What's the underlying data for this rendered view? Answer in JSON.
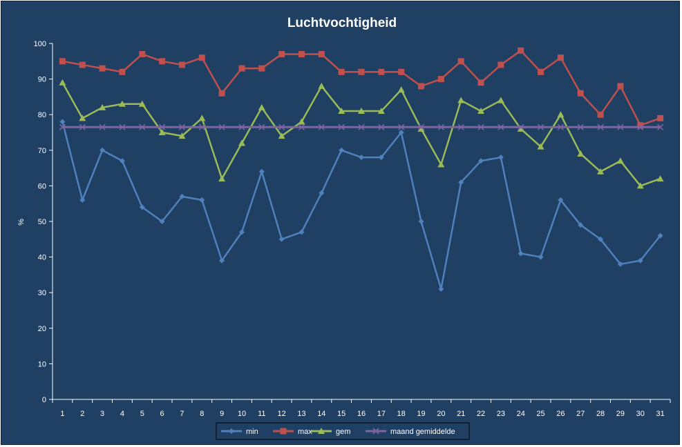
{
  "chart_data": {
    "type": "line",
    "title": "Luchtvochtigheid",
    "xlabel": "",
    "ylabel": "%",
    "ylim": [
      0,
      100
    ],
    "yticks": [
      0,
      10,
      20,
      30,
      40,
      50,
      60,
      70,
      80,
      90,
      100
    ],
    "grid": false,
    "legend_position": "bottom",
    "categories": [
      "1",
      "2",
      "3",
      "4",
      "5",
      "6",
      "7",
      "8",
      "9",
      "10",
      "11",
      "12",
      "13",
      "14",
      "15",
      "16",
      "17",
      "18",
      "19",
      "20",
      "21",
      "22",
      "23",
      "24",
      "25",
      "26",
      "27",
      "28",
      "29",
      "30",
      "31"
    ],
    "series": [
      {
        "name": "min",
        "color": "#4f81bd",
        "marker": "diamond",
        "values": [
          78,
          56,
          70,
          67,
          54,
          50,
          57,
          56,
          39,
          47,
          64,
          45,
          47,
          58,
          70,
          68,
          68,
          75,
          50,
          31,
          61,
          67,
          68,
          41,
          40,
          56,
          49,
          45,
          38,
          39,
          46
        ]
      },
      {
        "name": "max",
        "color": "#c0504d",
        "marker": "square",
        "values": [
          95,
          94,
          93,
          92,
          97,
          95,
          94,
          96,
          86,
          93,
          93,
          97,
          97,
          97,
          92,
          92,
          92,
          92,
          88,
          90,
          95,
          89,
          94,
          98,
          92,
          96,
          86,
          80,
          88,
          77,
          79
        ]
      },
      {
        "name": "gem",
        "color": "#9bbb59",
        "marker": "triangle",
        "values": [
          89,
          79,
          82,
          83,
          83,
          75,
          74,
          79,
          62,
          72,
          82,
          74,
          78,
          88,
          81,
          81,
          81,
          87,
          76,
          66,
          84,
          81,
          84,
          76,
          71,
          80,
          69,
          64,
          67,
          60,
          62
        ]
      },
      {
        "name": "maand gemiddelde",
        "color": "#8064a2",
        "marker": "x",
        "values": [
          76.5,
          76.5,
          76.5,
          76.5,
          76.5,
          76.5,
          76.5,
          76.5,
          76.5,
          76.5,
          76.5,
          76.5,
          76.5,
          76.5,
          76.5,
          76.5,
          76.5,
          76.5,
          76.5,
          76.5,
          76.5,
          76.5,
          76.5,
          76.5,
          76.5,
          76.5,
          76.5,
          76.5,
          76.5,
          76.5,
          76.5
        ]
      }
    ]
  }
}
